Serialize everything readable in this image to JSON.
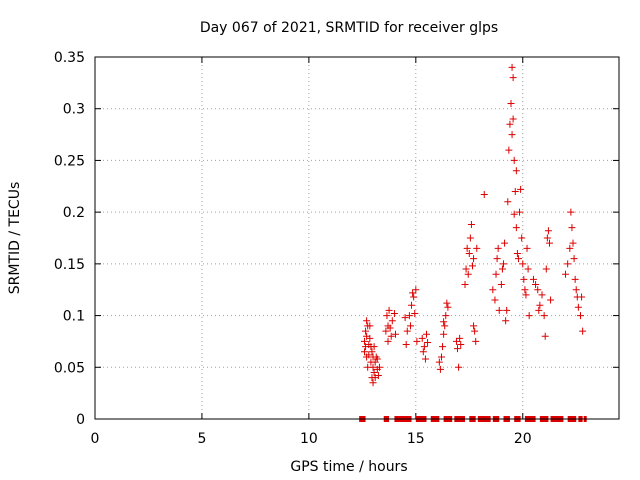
{
  "chart_data": {
    "type": "scatter",
    "title": "Day 067 of 2021, SRMTID for receiver glps",
    "xlabel": "GPS time / hours",
    "ylabel": "SRMTID / TECUs",
    "xlim": [
      0,
      24.5
    ],
    "ylim": [
      0,
      0.35
    ],
    "xticks": [
      0,
      5,
      10,
      15,
      20
    ],
    "yticks": [
      0,
      0.05,
      0.1,
      0.15,
      0.2,
      0.25,
      0.3,
      0.35
    ],
    "xtick_labels": [
      "0",
      "5",
      "10",
      "15",
      "20"
    ],
    "ytick_labels": [
      "0",
      "0.05",
      "0.1",
      "0.15",
      "0.2",
      "0.25",
      "0.3",
      "0.35"
    ],
    "grid": true,
    "marker": "+",
    "color": "#dd0000",
    "series": [
      {
        "name": "SRMTID",
        "points": [
          [
            12.6,
            0.065
          ],
          [
            12.6,
            0.075
          ],
          [
            12.65,
            0.07
          ],
          [
            12.65,
            0.085
          ],
          [
            12.7,
            0.06
          ],
          [
            12.7,
            0.08
          ],
          [
            12.7,
            0.095
          ],
          [
            12.75,
            0.05
          ],
          [
            12.75,
            0.09
          ],
          [
            12.8,
            0.072
          ],
          [
            12.8,
            0.062
          ],
          [
            12.85,
            0.09
          ],
          [
            12.85,
            0.078
          ],
          [
            12.9,
            0.07
          ],
          [
            12.9,
            0.055
          ],
          [
            12.95,
            0.04
          ],
          [
            12.95,
            0.065
          ],
          [
            13.0,
            0.05
          ],
          [
            13.0,
            0.035
          ],
          [
            13.0,
            0.06
          ],
          [
            13.05,
            0.045
          ],
          [
            13.05,
            0.07
          ],
          [
            13.1,
            0.055
          ],
          [
            13.1,
            0.04
          ],
          [
            13.15,
            0.06
          ],
          [
            13.2,
            0.048
          ],
          [
            13.2,
            0.058
          ],
          [
            13.25,
            0.042
          ],
          [
            13.3,
            0.05
          ],
          [
            13.6,
            0.085
          ],
          [
            13.65,
            0.1
          ],
          [
            13.7,
            0.075
          ],
          [
            13.7,
            0.09
          ],
          [
            13.75,
            0.105
          ],
          [
            13.8,
            0.088
          ],
          [
            13.85,
            0.08
          ],
          [
            13.9,
            0.095
          ],
          [
            14.0,
            0.102
          ],
          [
            14.05,
            0.082
          ],
          [
            14.5,
            0.098
          ],
          [
            14.55,
            0.072
          ],
          [
            14.6,
            0.085
          ],
          [
            14.7,
            0.1
          ],
          [
            14.75,
            0.09
          ],
          [
            14.8,
            0.11
          ],
          [
            14.85,
            0.122
          ],
          [
            14.9,
            0.118
          ],
          [
            14.95,
            0.102
          ],
          [
            15.0,
            0.125
          ],
          [
            15.05,
            0.075
          ],
          [
            15.3,
            0.078
          ],
          [
            15.35,
            0.065
          ],
          [
            15.4,
            0.07
          ],
          [
            15.45,
            0.058
          ],
          [
            15.5,
            0.082
          ],
          [
            15.55,
            0.074
          ],
          [
            16.1,
            0.055
          ],
          [
            16.15,
            0.048
          ],
          [
            16.2,
            0.06
          ],
          [
            16.25,
            0.07
          ],
          [
            16.3,
            0.082
          ],
          [
            16.3,
            0.094
          ],
          [
            16.35,
            0.09
          ],
          [
            16.4,
            0.1
          ],
          [
            16.45,
            0.112
          ],
          [
            16.5,
            0.108
          ],
          [
            16.9,
            0.075
          ],
          [
            16.95,
            0.068
          ],
          [
            17.0,
            0.05
          ],
          [
            17.05,
            0.078
          ],
          [
            17.1,
            0.072
          ],
          [
            17.3,
            0.13
          ],
          [
            17.35,
            0.145
          ],
          [
            17.4,
            0.165
          ],
          [
            17.45,
            0.14
          ],
          [
            17.5,
            0.16
          ],
          [
            17.55,
            0.175
          ],
          [
            17.6,
            0.188
          ],
          [
            17.65,
            0.148
          ],
          [
            17.7,
            0.155
          ],
          [
            17.7,
            0.09
          ],
          [
            17.75,
            0.085
          ],
          [
            17.8,
            0.075
          ],
          [
            17.85,
            0.165
          ],
          [
            18.2,
            0.217
          ],
          [
            18.6,
            0.125
          ],
          [
            18.7,
            0.115
          ],
          [
            18.75,
            0.14
          ],
          [
            18.8,
            0.155
          ],
          [
            18.85,
            0.165
          ],
          [
            18.9,
            0.105
          ],
          [
            19.0,
            0.13
          ],
          [
            19.05,
            0.145
          ],
          [
            19.1,
            0.15
          ],
          [
            19.15,
            0.17
          ],
          [
            19.2,
            0.095
          ],
          [
            19.25,
            0.105
          ],
          [
            19.3,
            0.21
          ],
          [
            19.35,
            0.26
          ],
          [
            19.4,
            0.285
          ],
          [
            19.45,
            0.305
          ],
          [
            19.5,
            0.34
          ],
          [
            19.5,
            0.275
          ],
          [
            19.55,
            0.33
          ],
          [
            19.55,
            0.29
          ],
          [
            19.6,
            0.25
          ],
          [
            19.6,
            0.198
          ],
          [
            19.65,
            0.22
          ],
          [
            19.7,
            0.24
          ],
          [
            19.7,
            0.185
          ],
          [
            19.75,
            0.16
          ],
          [
            19.8,
            0.155
          ],
          [
            19.85,
            0.2
          ],
          [
            19.9,
            0.222
          ],
          [
            19.95,
            0.175
          ],
          [
            20.0,
            0.15
          ],
          [
            20.05,
            0.135
          ],
          [
            20.1,
            0.125
          ],
          [
            20.15,
            0.12
          ],
          [
            20.2,
            0.165
          ],
          [
            20.25,
            0.145
          ],
          [
            20.3,
            0.1
          ],
          [
            20.5,
            0.135
          ],
          [
            20.6,
            0.13
          ],
          [
            20.7,
            0.125
          ],
          [
            20.75,
            0.105
          ],
          [
            20.8,
            0.11
          ],
          [
            20.9,
            0.12
          ],
          [
            21.0,
            0.1
          ],
          [
            21.05,
            0.08
          ],
          [
            21.1,
            0.145
          ],
          [
            21.15,
            0.175
          ],
          [
            21.2,
            0.182
          ],
          [
            21.25,
            0.17
          ],
          [
            21.3,
            0.115
          ],
          [
            22.0,
            0.14
          ],
          [
            22.1,
            0.15
          ],
          [
            22.2,
            0.165
          ],
          [
            22.25,
            0.2
          ],
          [
            22.3,
            0.185
          ],
          [
            22.35,
            0.17
          ],
          [
            22.4,
            0.155
          ],
          [
            22.45,
            0.135
          ],
          [
            22.5,
            0.125
          ],
          [
            22.55,
            0.118
          ],
          [
            22.6,
            0.108
          ],
          [
            22.7,
            0.1
          ],
          [
            22.75,
            0.118
          ],
          [
            22.8,
            0.085
          ]
        ]
      }
    ],
    "zero_segments": [
      [
        12.35,
        12.65
      ],
      [
        13.5,
        13.75
      ],
      [
        14.0,
        14.8
      ],
      [
        15.0,
        15.5
      ],
      [
        15.7,
        16.1
      ],
      [
        16.3,
        16.7
      ],
      [
        16.8,
        17.3
      ],
      [
        17.5,
        17.8
      ],
      [
        17.9,
        18.5
      ],
      [
        18.6,
        18.9
      ],
      [
        19.1,
        19.4
      ],
      [
        19.6,
        19.9
      ],
      [
        20.1,
        20.6
      ],
      [
        20.8,
        21.2
      ],
      [
        21.3,
        21.9
      ],
      [
        22.1,
        22.5
      ],
      [
        22.6,
        22.8
      ],
      [
        22.85,
        22.95
      ]
    ]
  }
}
